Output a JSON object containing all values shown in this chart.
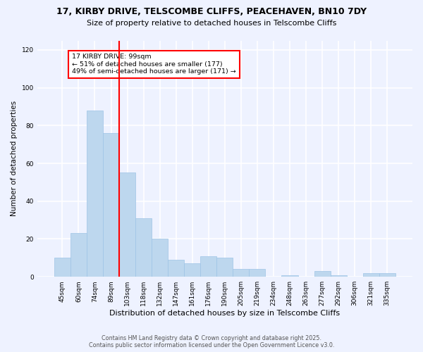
{
  "title1": "17, KIRBY DRIVE, TELSCOMBE CLIFFS, PEACEHAVEN, BN10 7DY",
  "title2": "Size of property relative to detached houses in Telscombe Cliffs",
  "xlabel": "Distribution of detached houses by size in Telscombe Cliffs",
  "ylabel": "Number of detached properties",
  "categories": [
    "45sqm",
    "60sqm",
    "74sqm",
    "89sqm",
    "103sqm",
    "118sqm",
    "132sqm",
    "147sqm",
    "161sqm",
    "176sqm",
    "190sqm",
    "205sqm",
    "219sqm",
    "234sqm",
    "248sqm",
    "263sqm",
    "277sqm",
    "292sqm",
    "306sqm",
    "321sqm",
    "335sqm"
  ],
  "values": [
    10,
    23,
    88,
    76,
    55,
    31,
    20,
    9,
    7,
    11,
    10,
    4,
    4,
    0,
    1,
    0,
    3,
    1,
    0,
    2,
    2
  ],
  "bar_color": "#bdd7ee",
  "bar_edge_color": "#9dc3e6",
  "vline_index": 4,
  "vline_color": "red",
  "annotation_title": "17 KIRBY DRIVE: 99sqm",
  "annotation_line1": "← 51% of detached houses are smaller (177)",
  "annotation_line2": "49% of semi-detached houses are larger (171) →",
  "footer1": "Contains HM Land Registry data © Crown copyright and database right 2025.",
  "footer2": "Contains public sector information licensed under the Open Government Licence v3.0.",
  "ylim": [
    0,
    125
  ],
  "yticks": [
    0,
    20,
    40,
    60,
    80,
    100,
    120
  ],
  "bg_color": "#eef2ff",
  "plot_bg_color": "#eef2ff"
}
